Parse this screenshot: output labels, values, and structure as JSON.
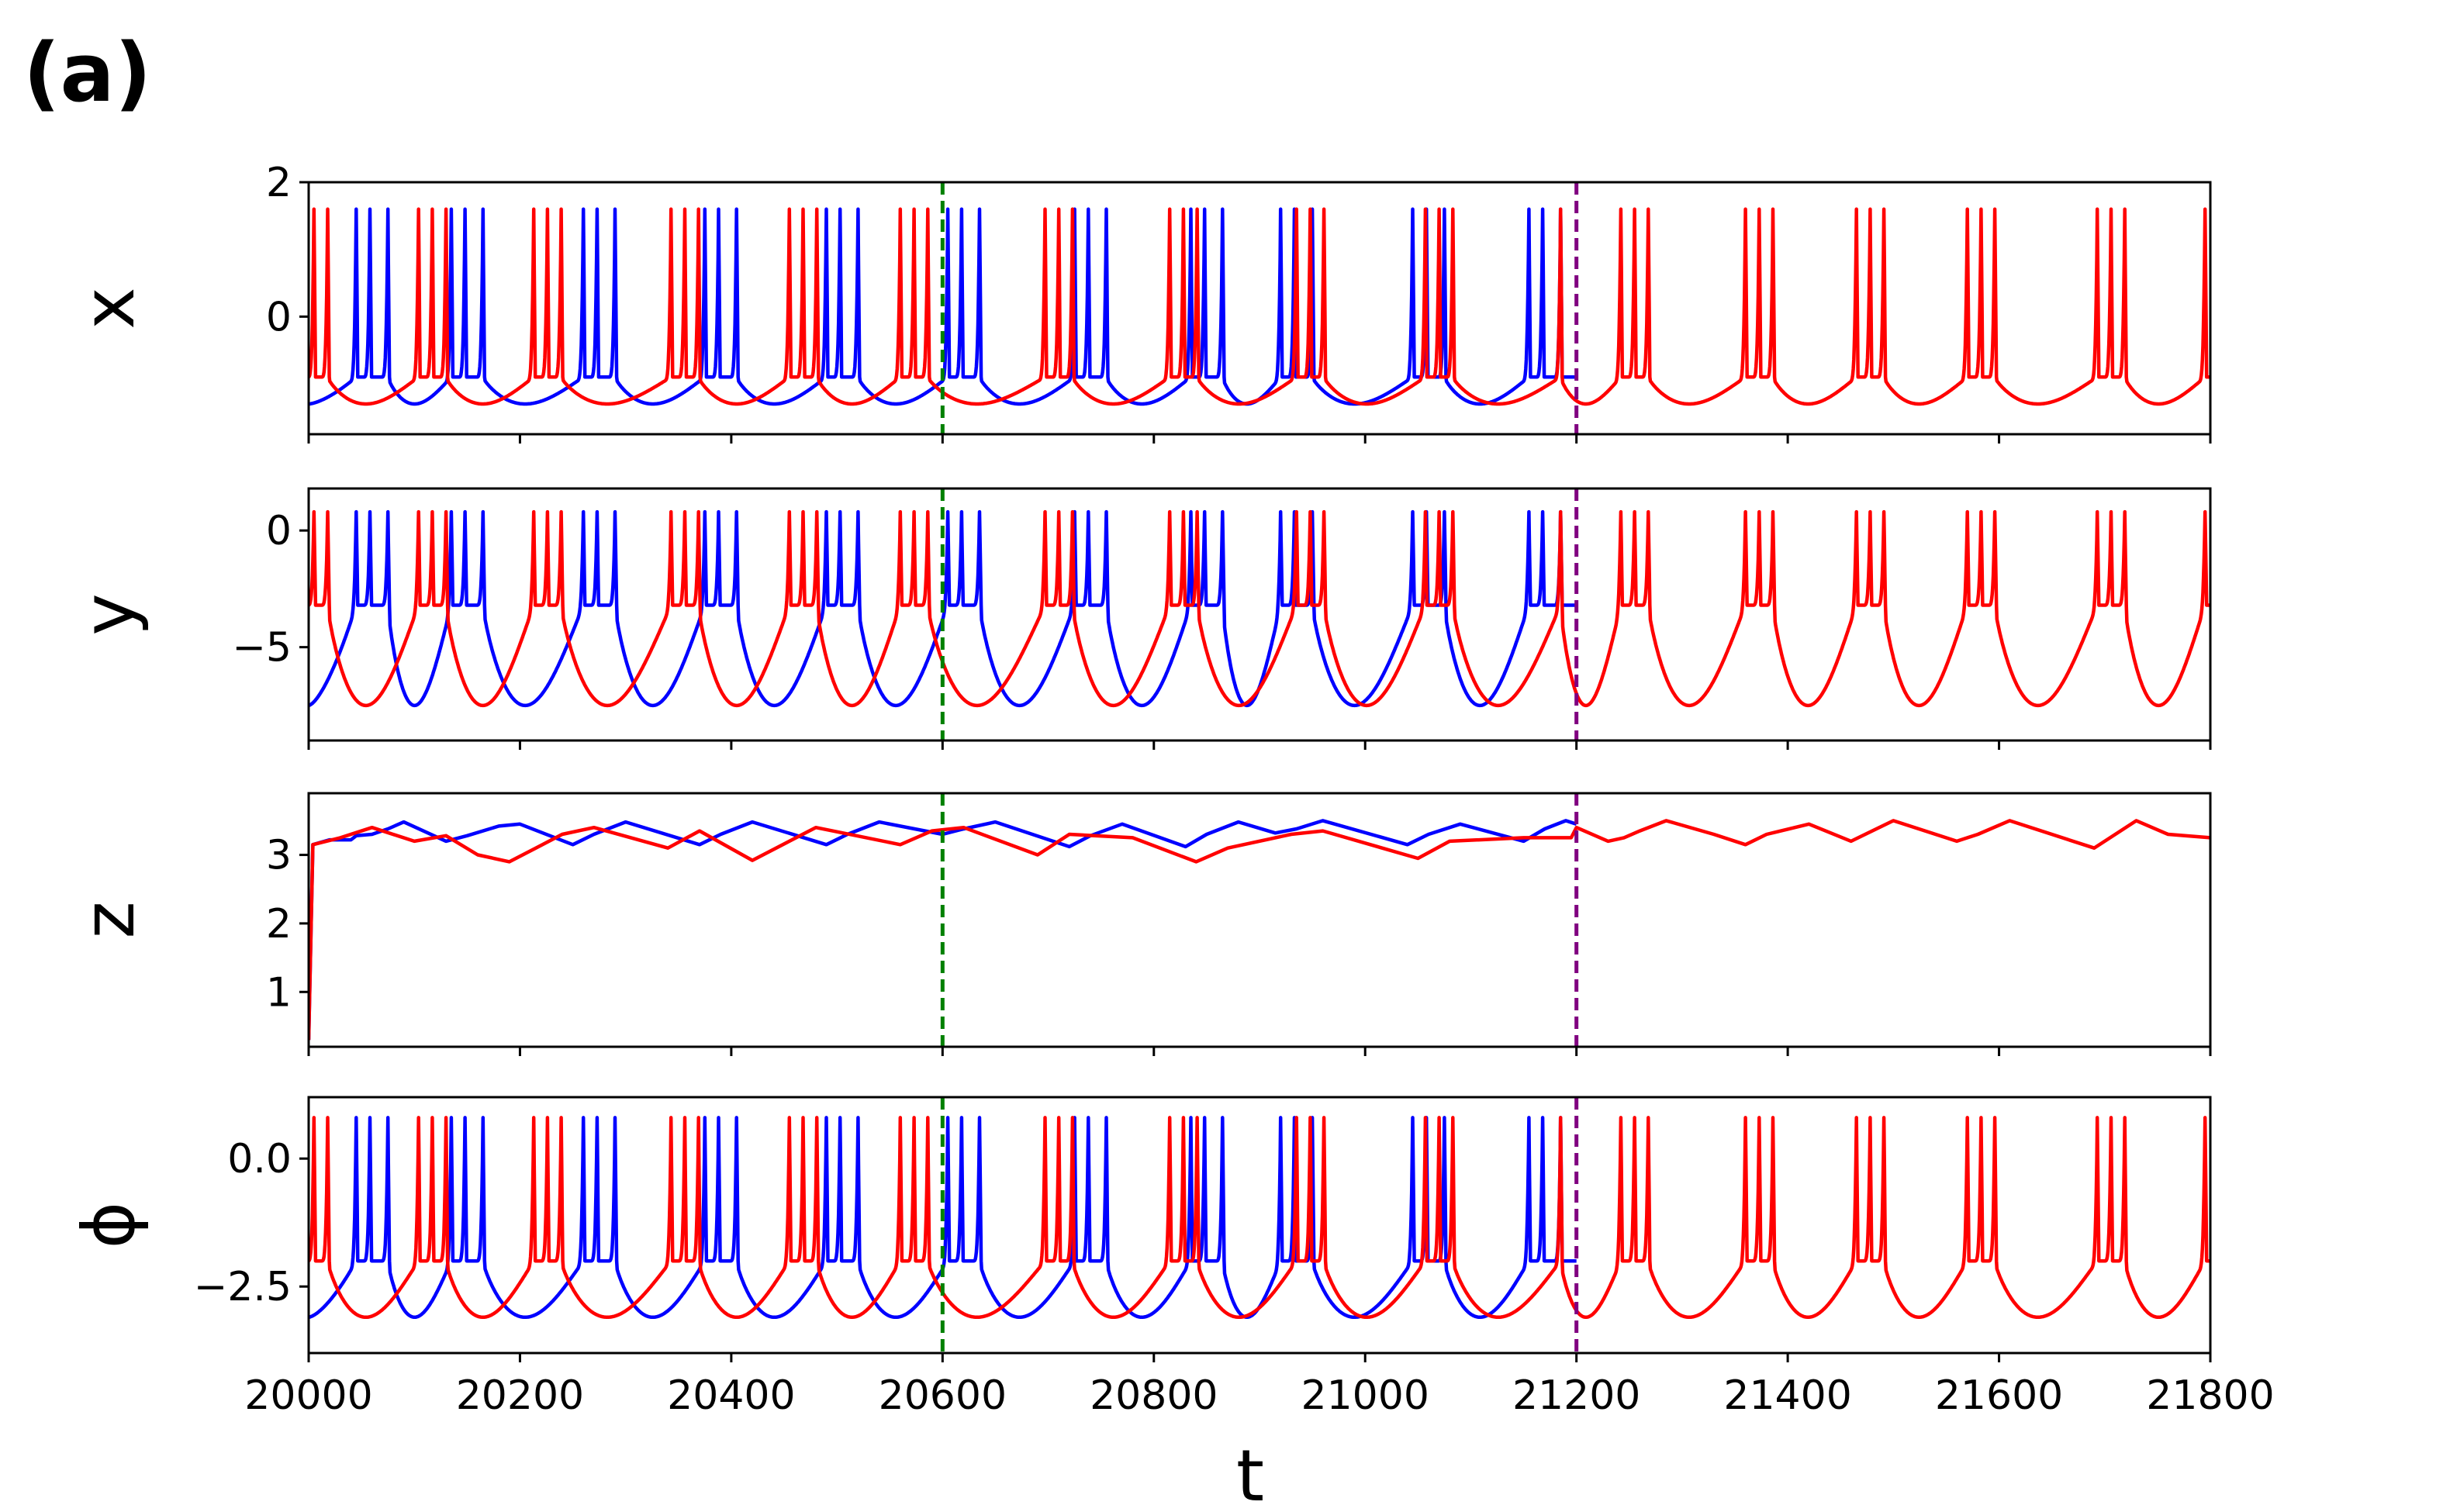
{
  "figure": {
    "panel_label": "(a)"
  },
  "chart_data": {
    "type": "line",
    "xlabel": "t",
    "xlim": [
      20000,
      21800
    ],
    "xticks": [
      "20000",
      "20200",
      "20400",
      "20600",
      "20800",
      "21000",
      "21200",
      "21400",
      "21600",
      "21800"
    ],
    "vlines": [
      {
        "x": 20600,
        "color": "#008000",
        "style": "dashed"
      },
      {
        "x": 21200,
        "color": "#800080",
        "style": "dashed"
      }
    ],
    "series_colors": {
      "blue": "#0000ff",
      "red": "#ff0000"
    },
    "series_ranges": {
      "blue": [
        20000,
        21200
      ],
      "red": [
        20000,
        21800
      ]
    },
    "panels": [
      {
        "ylabel": "x",
        "ylim": [
          -1.75,
          2.0
        ],
        "yticks": [
          {
            "value": 2,
            "label": "2"
          },
          {
            "value": 0,
            "label": "0"
          }
        ],
        "rest": -0.9,
        "trough": -1.3,
        "peak": 1.6,
        "blue_peaks": [
          20045,
          20058,
          20075,
          20135,
          20148,
          20165,
          20260,
          20273,
          20290,
          20375,
          20388,
          20405,
          20490,
          20503,
          20520,
          20605,
          20618,
          20635,
          20725,
          20738,
          20755,
          20835,
          20848,
          20865,
          20920,
          20933,
          20950,
          21045,
          21058,
          21075,
          21155,
          21168,
          21185
        ],
        "red_peaks": [
          20005,
          20018,
          20104,
          20117,
          20130,
          20213,
          20226,
          20239,
          20343,
          20356,
          20369,
          20455,
          20468,
          20481,
          20560,
          20573,
          20586,
          20697,
          20710,
          20723,
          20815,
          20828,
          20841,
          20935,
          20948,
          20961,
          21057,
          21070,
          21083,
          21185,
          21242,
          21255,
          21268,
          21360,
          21373,
          21386,
          21465,
          21478,
          21491,
          21570,
          21583,
          21596,
          21693,
          21706,
          21719,
          21795
        ]
      },
      {
        "ylabel": "y",
        "ylim": [
          -9.0,
          1.8
        ],
        "yticks": [
          {
            "value": 0,
            "label": "0"
          },
          {
            "value": -5,
            "label": "−5"
          }
        ],
        "rest": -3.2,
        "trough": -7.5,
        "peak": 0.8,
        "blue_peaks": [
          20045,
          20058,
          20075,
          20135,
          20148,
          20165,
          20260,
          20273,
          20290,
          20375,
          20388,
          20405,
          20490,
          20503,
          20520,
          20605,
          20618,
          20635,
          20725,
          20738,
          20755,
          20835,
          20848,
          20865,
          20920,
          20933,
          20950,
          21045,
          21058,
          21075,
          21155,
          21168,
          21185
        ],
        "red_peaks": [
          20005,
          20018,
          20104,
          20117,
          20130,
          20213,
          20226,
          20239,
          20343,
          20356,
          20369,
          20455,
          20468,
          20481,
          20560,
          20573,
          20586,
          20697,
          20710,
          20723,
          20815,
          20828,
          20841,
          20935,
          20948,
          20961,
          21057,
          21070,
          21083,
          21185,
          21242,
          21255,
          21268,
          21360,
          21373,
          21386,
          21465,
          21478,
          21491,
          21570,
          21583,
          21596,
          21693,
          21706,
          21719,
          21795
        ]
      },
      {
        "ylabel": "z",
        "ylim": [
          0.2,
          3.9
        ],
        "yticks": [
          {
            "value": 3,
            "label": "3"
          },
          {
            "value": 2,
            "label": "2"
          },
          {
            "value": 1,
            "label": "1"
          }
        ],
        "blue_points": [
          [
            20000,
            0.3
          ],
          [
            20004,
            3.15
          ],
          [
            20020,
            3.22
          ],
          [
            20040,
            3.22
          ],
          [
            20045,
            3.28
          ],
          [
            20060,
            3.3
          ],
          [
            20075,
            3.38
          ],
          [
            20090,
            3.48
          ],
          [
            20130,
            3.2
          ],
          [
            20150,
            3.28
          ],
          [
            20180,
            3.42
          ],
          [
            20200,
            3.45
          ],
          [
            20250,
            3.15
          ],
          [
            20270,
            3.3
          ],
          [
            20300,
            3.48
          ],
          [
            20370,
            3.15
          ],
          [
            20390,
            3.3
          ],
          [
            20420,
            3.48
          ],
          [
            20490,
            3.15
          ],
          [
            20510,
            3.3
          ],
          [
            20540,
            3.48
          ],
          [
            20600,
            3.3
          ],
          [
            20620,
            3.38
          ],
          [
            20650,
            3.48
          ],
          [
            20720,
            3.12
          ],
          [
            20740,
            3.28
          ],
          [
            20770,
            3.45
          ],
          [
            20830,
            3.12
          ],
          [
            20850,
            3.3
          ],
          [
            20880,
            3.48
          ],
          [
            20915,
            3.32
          ],
          [
            20935,
            3.38
          ],
          [
            20960,
            3.5
          ],
          [
            21040,
            3.15
          ],
          [
            21060,
            3.3
          ],
          [
            21090,
            3.45
          ],
          [
            21150,
            3.2
          ],
          [
            21170,
            3.38
          ],
          [
            21190,
            3.5
          ],
          [
            21200,
            3.45
          ]
        ],
        "red_points": [
          [
            20000,
            0.3
          ],
          [
            20004,
            3.15
          ],
          [
            20030,
            3.25
          ],
          [
            20060,
            3.4
          ],
          [
            20100,
            3.2
          ],
          [
            20130,
            3.28
          ],
          [
            20160,
            3.0
          ],
          [
            20190,
            2.9
          ],
          [
            20215,
            3.1
          ],
          [
            20240,
            3.3
          ],
          [
            20270,
            3.4
          ],
          [
            20340,
            3.1
          ],
          [
            20370,
            3.35
          ],
          [
            20420,
            2.92
          ],
          [
            20455,
            3.2
          ],
          [
            20480,
            3.4
          ],
          [
            20560,
            3.15
          ],
          [
            20590,
            3.35
          ],
          [
            20620,
            3.4
          ],
          [
            20690,
            3.0
          ],
          [
            20720,
            3.3
          ],
          [
            20780,
            3.25
          ],
          [
            20840,
            2.9
          ],
          [
            20870,
            3.1
          ],
          [
            20930,
            3.3
          ],
          [
            20960,
            3.35
          ],
          [
            21050,
            2.95
          ],
          [
            21080,
            3.2
          ],
          [
            21150,
            3.25
          ],
          [
            21195,
            3.25
          ],
          [
            21200,
            3.4
          ],
          [
            21230,
            3.2
          ],
          [
            21245,
            3.25
          ],
          [
            21260,
            3.35
          ],
          [
            21285,
            3.5
          ],
          [
            21330,
            3.3
          ],
          [
            21360,
            3.15
          ],
          [
            21380,
            3.3
          ],
          [
            21420,
            3.45
          ],
          [
            21460,
            3.2
          ],
          [
            21500,
            3.5
          ],
          [
            21560,
            3.2
          ],
          [
            21580,
            3.3
          ],
          [
            21610,
            3.5
          ],
          [
            21690,
            3.1
          ],
          [
            21730,
            3.5
          ],
          [
            21760,
            3.3
          ],
          [
            21800,
            3.25
          ]
        ]
      },
      {
        "ylabel": "ϕ",
        "ylim": [
          -3.8,
          1.2
        ],
        "yticks": [
          {
            "value": 0.0,
            "label": "0.0"
          },
          {
            "value": -2.5,
            "label": "−2.5"
          }
        ],
        "rest": -2.0,
        "trough": -3.1,
        "peak": 0.8,
        "blue_peaks": [
          20045,
          20058,
          20075,
          20135,
          20148,
          20165,
          20260,
          20273,
          20290,
          20375,
          20388,
          20405,
          20490,
          20503,
          20520,
          20605,
          20618,
          20635,
          20725,
          20738,
          20755,
          20835,
          20848,
          20865,
          20920,
          20933,
          20950,
          21045,
          21058,
          21075,
          21155,
          21168,
          21185
        ],
        "red_peaks": [
          20005,
          20018,
          20104,
          20117,
          20130,
          20213,
          20226,
          20239,
          20343,
          20356,
          20369,
          20455,
          20468,
          20481,
          20560,
          20573,
          20586,
          20697,
          20710,
          20723,
          20815,
          20828,
          20841,
          20935,
          20948,
          20961,
          21057,
          21070,
          21083,
          21185,
          21242,
          21255,
          21268,
          21360,
          21373,
          21386,
          21465,
          21478,
          21491,
          21570,
          21583,
          21596,
          21693,
          21706,
          21719,
          21795
        ]
      }
    ]
  }
}
